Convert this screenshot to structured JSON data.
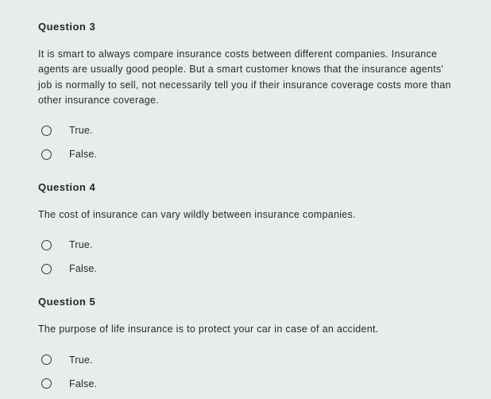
{
  "background_color": "#e8ede9",
  "text_color": "#1a2a2a",
  "font_family": "Arial",
  "base_font_size": 13,
  "questions": [
    {
      "title": "Question 3",
      "text": "It is smart to always compare insurance costs between different companies. Insurance agents are usually good people. But a smart customer knows that the insurance agents' job is normally to sell, not necessarily tell you if their insurance coverage costs more than other insurance coverage.",
      "options": [
        "True.",
        "False."
      ]
    },
    {
      "title": "Question 4",
      "text": "The cost of insurance can vary wildly between insurance companies.",
      "options": [
        "True.",
        "False."
      ]
    },
    {
      "title": "Question 5",
      "text": "The purpose of life insurance is to protect your car in case of an accident.",
      "options": [
        "True.",
        "False."
      ]
    }
  ]
}
